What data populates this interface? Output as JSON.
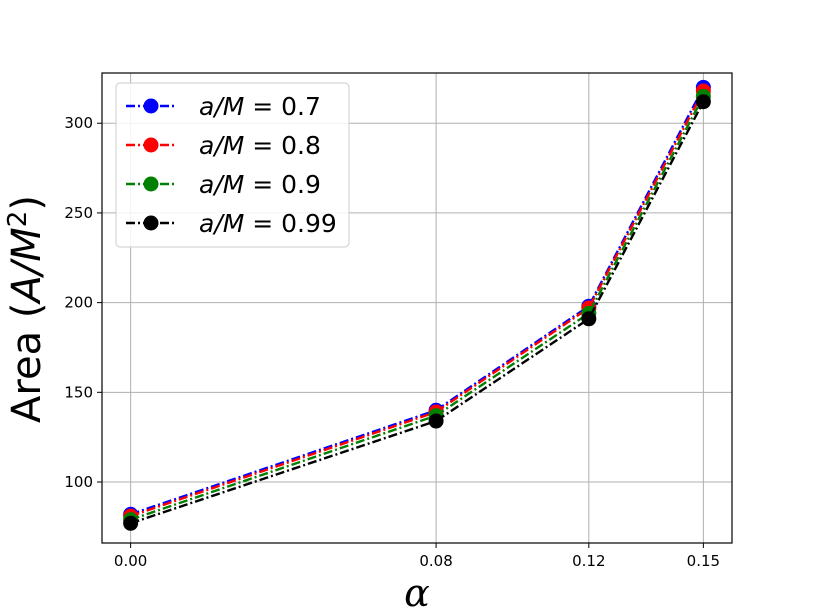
{
  "chart_data": {
    "type": "line",
    "title": "",
    "xlabel": "α",
    "ylabel_prefix": "Area (",
    "ylabel_italic": "A/M",
    "ylabel_sup": "2",
    "ylabel_suffix": ")",
    "x": [
      0.0,
      0.08,
      0.12,
      0.15
    ],
    "x_tick_labels": [
      "0.00",
      "0.08",
      "0.12",
      "0.15"
    ],
    "xlim": [
      -0.0075,
      0.1575
    ],
    "ylim": [
      66,
      328
    ],
    "y_ticks": [
      100,
      150,
      200,
      250,
      300
    ],
    "grid": true,
    "legend_position": "top-left",
    "series": [
      {
        "name": "a/M = 0.7",
        "legend_value": "0.7",
        "color": "#0000ff",
        "values": [
          82,
          140,
          198,
          320
        ]
      },
      {
        "name": "a/M = 0.8",
        "legend_value": "0.8",
        "color": "#ff0000",
        "values": [
          81,
          139,
          197,
          318
        ]
      },
      {
        "name": "a/M = 0.9",
        "legend_value": "0.9",
        "color": "#008000",
        "values": [
          79,
          137,
          194,
          315
        ]
      },
      {
        "name": "a/M = 0.99",
        "legend_value": "0.99",
        "color": "#000000",
        "values": [
          77,
          134,
          191,
          312
        ]
      }
    ],
    "legend_prefix": "a/M",
    "legend_eq": " = "
  }
}
